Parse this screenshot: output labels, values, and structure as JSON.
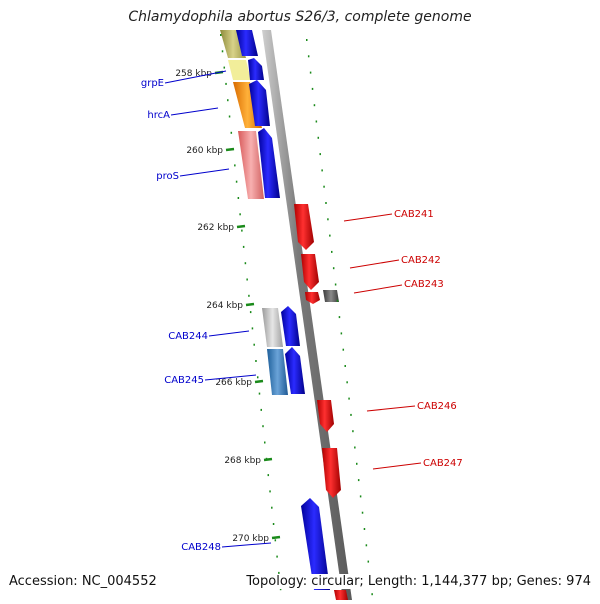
{
  "title": "Chlamydophila abortus S26/3, complete genome",
  "footer": {
    "accession": "Accession: NC_004552",
    "summary": "Topology: circular; Length: 1,144,377 bp; Genes: 974"
  },
  "colors": {
    "plus_strand": "#0000ee",
    "minus_strand": "#ee0000",
    "pseudo": "#555555",
    "backbone": "#8c8c8c",
    "ticks": "#1a8a1a",
    "label_blue": "#0000cc",
    "label_red": "#cc0000"
  },
  "ruler": {
    "unit": "kbp",
    "labels": [
      "258 kbp",
      "260 kbp",
      "262 kbp",
      "264 kbp",
      "266 kbp",
      "268 kbp",
      "270 kbp"
    ]
  },
  "genes_left": [
    {
      "name": "grpE",
      "color": "blue"
    },
    {
      "name": "hrcA",
      "color": "blue"
    },
    {
      "name": "proS",
      "color": "blue"
    },
    {
      "name": "CAB244",
      "color": "blue"
    },
    {
      "name": "CAB245",
      "color": "blue"
    },
    {
      "name": "CAB248",
      "color": "blue"
    }
  ],
  "genes_right": [
    {
      "name": "CAB241",
      "color": "red"
    },
    {
      "name": "CAB242",
      "color": "red"
    },
    {
      "name": "CAB243",
      "color": "red"
    },
    {
      "name": "CAB246",
      "color": "red"
    },
    {
      "name": "CAB247",
      "color": "red"
    }
  ]
}
